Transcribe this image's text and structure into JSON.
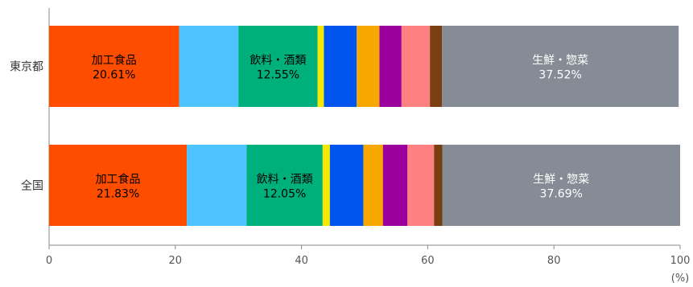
{
  "chart_data": {
    "type": "bar",
    "orientation": "horizontal",
    "stacked": true,
    "categories": [
      "東京都",
      "全国"
    ],
    "series": [
      {
        "color": "#ff4d00",
        "values": [
          20.61,
          21.83
        ],
        "label_name": "加工食品"
      },
      {
        "color": "#4dc3ff",
        "values": [
          9.39,
          9.47
        ]
      },
      {
        "color": "#00b07c",
        "values": [
          12.55,
          12.05
        ],
        "label_name": "飲料・酒類"
      },
      {
        "color": "#f6e800",
        "values": [
          1.0,
          1.15
        ]
      },
      {
        "color": "#0055ee",
        "values": [
          5.2,
          5.3
        ]
      },
      {
        "color": "#f6a700",
        "values": [
          3.6,
          3.1
        ]
      },
      {
        "color": "#9c009c",
        "values": [
          3.5,
          3.9
        ]
      },
      {
        "color": "#ff8080",
        "values": [
          4.5,
          4.2
        ]
      },
      {
        "color": "#7a3f10",
        "values": [
          1.9,
          1.31
        ]
      },
      {
        "color": "#858c95",
        "values": [
          37.52,
          37.69
        ],
        "label_name": "生鮮・惣菜"
      }
    ],
    "segment_labels": [
      {
        "category_index": 0,
        "series_index": 0,
        "name": "加工食品",
        "value": "20.61%",
        "text_color": "#000000"
      },
      {
        "category_index": 0,
        "series_index": 2,
        "name": "飲料・酒類",
        "value": "12.55%",
        "text_color": "#000000"
      },
      {
        "category_index": 0,
        "series_index": 9,
        "name": "生鮮・惣菜",
        "value": "37.52%",
        "text_color": "#ffffff"
      },
      {
        "category_index": 1,
        "series_index": 0,
        "name": "加工食品",
        "value": "21.83%",
        "text_color": "#000000"
      },
      {
        "category_index": 1,
        "series_index": 2,
        "name": "飲料・酒類",
        "value": "12.05%",
        "text_color": "#000000"
      },
      {
        "category_index": 1,
        "series_index": 9,
        "name": "生鮮・惣菜",
        "value": "37.69%",
        "text_color": "#ffffff"
      }
    ],
    "xlim": [
      0,
      100
    ],
    "xticks": [
      "0",
      "20",
      "40",
      "60",
      "80",
      "100"
    ],
    "x_unit": "(%)",
    "grid": false
  }
}
